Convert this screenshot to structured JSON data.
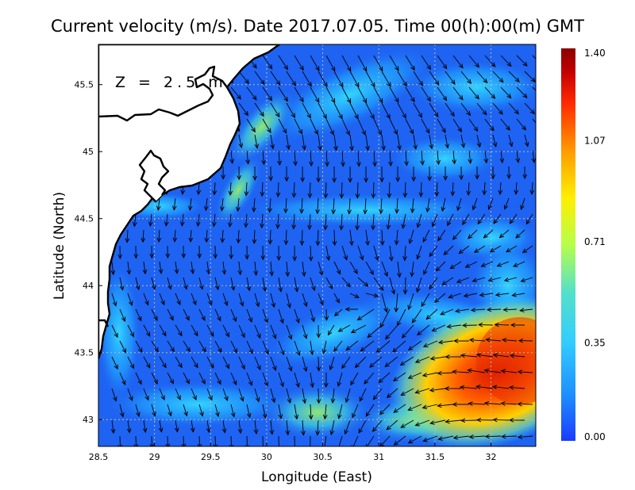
{
  "title": "Current velocity (m/s). Date 2017.07.05. Time 00(h):00(m) GMT",
  "depth_label": "Z = 2.5 m",
  "xlabel": "Longitude (East)",
  "ylabel": "Latitude (North)",
  "map": {
    "lon_range": [
      28.5,
      32.4
    ],
    "lat_range": [
      42.8,
      45.8
    ],
    "x_ticks": [
      "28.5",
      "29",
      "29.5",
      "30",
      "30.5",
      "31",
      "31.5",
      "32"
    ],
    "x_tick_values": [
      28.5,
      29,
      29.5,
      30,
      30.5,
      31,
      31.5,
      32
    ],
    "y_ticks": [
      "43",
      "43.5",
      "44",
      "44.5",
      "45",
      "45.5"
    ],
    "y_tick_values": [
      43,
      43.5,
      44,
      44.5,
      45,
      45.5
    ],
    "grid": "dotted"
  },
  "colorbar": {
    "labels": [
      "1.40",
      "1.07",
      "0.71",
      "0.35",
      "0.00"
    ],
    "values": [
      1.4,
      1.07,
      0.71,
      0.35,
      0.0
    ],
    "vmin": 0.0,
    "vmax": 1.4,
    "colormap": [
      "#1a3cff",
      "#1e90ff",
      "#33ccff",
      "#55e0c8",
      "#b6ff4a",
      "#ffee00",
      "#ff9a00",
      "#ff2a00",
      "#c40000",
      "#8b0000"
    ]
  },
  "colors": {
    "land": "#ffffff",
    "coast": "#000000",
    "ocean_base": "#1e63f2",
    "arrow": "#000000"
  }
}
